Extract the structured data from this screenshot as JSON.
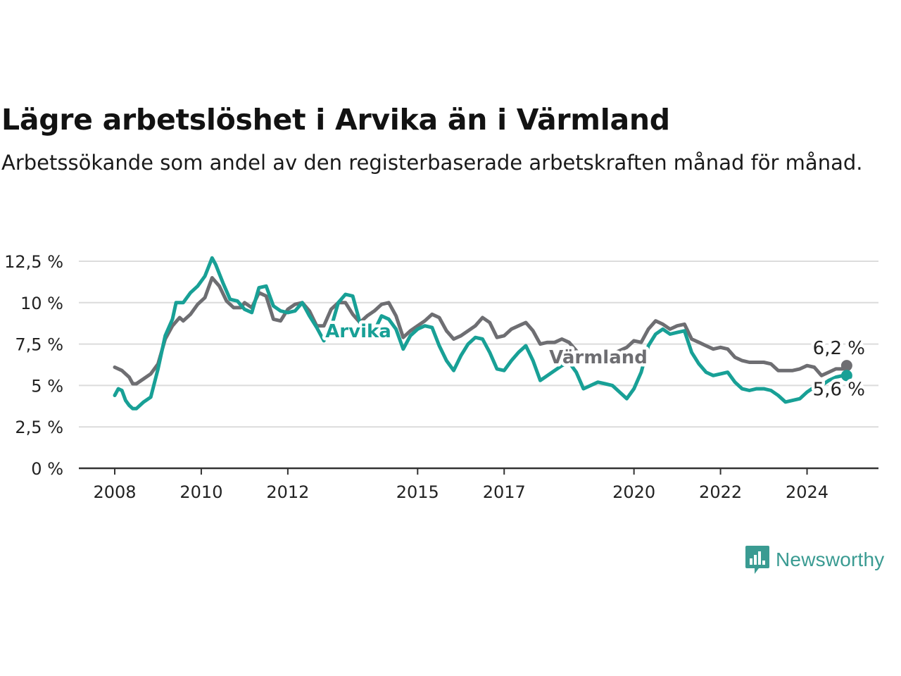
{
  "header": {
    "title": "Lägre arbetslöshet i Arvika än i Värmland",
    "subtitle": "Arbetssökande som andel av den registerbaserade arbetskraften månad för månad."
  },
  "brand": {
    "name": "Newsworthy",
    "icon": "newsworthy-logo-icon",
    "color": "#3a9b92"
  },
  "chart_data": {
    "type": "line",
    "title": "Lägre arbetslöshet i Arvika än i Värmland",
    "subtitle": "Arbetssökande som andel av den registerbaserade arbetskraften månad för månad.",
    "xlabel": "",
    "ylabel": "",
    "x_range": [
      "2008-01",
      "2024-12"
    ],
    "x_ticks": [
      {
        "label": "2008",
        "t": 2008.0
      },
      {
        "label": "2010",
        "t": 2010.0
      },
      {
        "label": "2012",
        "t": 2012.0
      },
      {
        "label": "2015",
        "t": 2015.0
      },
      {
        "label": "2017",
        "t": 2017.0
      },
      {
        "label": "2020",
        "t": 2020.0
      },
      {
        "label": "2022",
        "t": 2022.0
      },
      {
        "label": "2024",
        "t": 2024.0
      }
    ],
    "ylim": [
      0,
      12.5
    ],
    "y_ticks": [
      {
        "value": 0,
        "label": "0 %"
      },
      {
        "value": 2.5,
        "label": "2,5 %"
      },
      {
        "value": 5,
        "label": "5 %"
      },
      {
        "value": 7.5,
        "label": "7,5 %"
      },
      {
        "value": 10,
        "label": "10 %"
      },
      {
        "value": 12.5,
        "label": "12,5 %"
      }
    ],
    "grid": true,
    "legend": "none",
    "series": [
      {
        "name": "Värmland",
        "color": "#6e6e72",
        "end_label": "6,2 %",
        "points": [
          [
            "2008-01",
            6.1
          ],
          [
            "2008-03",
            5.9
          ],
          [
            "2008-05",
            5.5
          ],
          [
            "2008-06",
            5.1
          ],
          [
            "2008-07",
            5.1
          ],
          [
            "2008-09",
            5.4
          ],
          [
            "2008-11",
            5.7
          ],
          [
            "2009-01",
            6.3
          ],
          [
            "2009-03",
            7.8
          ],
          [
            "2009-05",
            8.6
          ],
          [
            "2009-07",
            9.1
          ],
          [
            "2009-08",
            8.9
          ],
          [
            "2009-10",
            9.3
          ],
          [
            "2009-12",
            9.9
          ],
          [
            "2010-02",
            10.3
          ],
          [
            "2010-04",
            11.5
          ],
          [
            "2010-06",
            11.0
          ],
          [
            "2010-08",
            10.1
          ],
          [
            "2010-10",
            9.7
          ],
          [
            "2010-12",
            9.7
          ],
          [
            "2011-01",
            10.0
          ],
          [
            "2011-03",
            9.7
          ],
          [
            "2011-05",
            10.6
          ],
          [
            "2011-07",
            10.4
          ],
          [
            "2011-09",
            9.0
          ],
          [
            "2011-11",
            8.9
          ],
          [
            "2012-01",
            9.6
          ],
          [
            "2012-03",
            9.9
          ],
          [
            "2012-05",
            10.0
          ],
          [
            "2012-07",
            9.5
          ],
          [
            "2012-09",
            8.6
          ],
          [
            "2012-11",
            8.6
          ],
          [
            "2013-01",
            9.6
          ],
          [
            "2013-03",
            10.0
          ],
          [
            "2013-05",
            10.0
          ],
          [
            "2013-07",
            9.3
          ],
          [
            "2013-09",
            8.8
          ],
          [
            "2013-11",
            9.2
          ],
          [
            "2014-01",
            9.5
          ],
          [
            "2014-03",
            9.9
          ],
          [
            "2014-05",
            10.0
          ],
          [
            "2014-07",
            9.2
          ],
          [
            "2014-09",
            7.9
          ],
          [
            "2014-11",
            8.3
          ],
          [
            "2015-01",
            8.6
          ],
          [
            "2015-03",
            8.9
          ],
          [
            "2015-05",
            9.3
          ],
          [
            "2015-07",
            9.1
          ],
          [
            "2015-09",
            8.3
          ],
          [
            "2015-11",
            7.8
          ],
          [
            "2016-01",
            8.0
          ],
          [
            "2016-03",
            8.3
          ],
          [
            "2016-05",
            8.6
          ],
          [
            "2016-07",
            9.1
          ],
          [
            "2016-09",
            8.8
          ],
          [
            "2016-11",
            7.9
          ],
          [
            "2017-01",
            8.0
          ],
          [
            "2017-03",
            8.4
          ],
          [
            "2017-05",
            8.6
          ],
          [
            "2017-07",
            8.8
          ],
          [
            "2017-09",
            8.3
          ],
          [
            "2017-11",
            7.5
          ],
          [
            "2018-01",
            7.6
          ],
          [
            "2018-03",
            7.6
          ],
          [
            "2018-05",
            7.8
          ],
          [
            "2018-07",
            7.6
          ],
          [
            "2018-09",
            7.1
          ],
          [
            "2018-11",
            6.6
          ],
          [
            "2019-01",
            6.4
          ],
          [
            "2019-03",
            6.3
          ],
          [
            "2019-05",
            6.5
          ],
          [
            "2019-07",
            6.9
          ],
          [
            "2019-09",
            7.1
          ],
          [
            "2019-11",
            7.3
          ],
          [
            "2020-01",
            7.7
          ],
          [
            "2020-03",
            7.6
          ],
          [
            "2020-05",
            8.4
          ],
          [
            "2020-07",
            8.9
          ],
          [
            "2020-09",
            8.7
          ],
          [
            "2020-11",
            8.4
          ],
          [
            "2021-01",
            8.6
          ],
          [
            "2021-03",
            8.7
          ],
          [
            "2021-05",
            7.8
          ],
          [
            "2021-07",
            7.6
          ],
          [
            "2021-09",
            7.4
          ],
          [
            "2021-11",
            7.2
          ],
          [
            "2022-01",
            7.3
          ],
          [
            "2022-03",
            7.2
          ],
          [
            "2022-05",
            6.7
          ],
          [
            "2022-07",
            6.5
          ],
          [
            "2022-09",
            6.4
          ],
          [
            "2022-11",
            6.4
          ],
          [
            "2023-01",
            6.4
          ],
          [
            "2023-03",
            6.3
          ],
          [
            "2023-05",
            5.9
          ],
          [
            "2023-07",
            5.9
          ],
          [
            "2023-09",
            5.9
          ],
          [
            "2023-11",
            6.0
          ],
          [
            "2024-01",
            6.2
          ],
          [
            "2024-03",
            6.1
          ],
          [
            "2024-05",
            5.6
          ],
          [
            "2024-07",
            5.8
          ],
          [
            "2024-09",
            6.0
          ],
          [
            "2024-11",
            6.0
          ],
          [
            "2024-12",
            6.2
          ]
        ]
      },
      {
        "name": "Arvika",
        "color": "#18a096",
        "end_label": "5,6 %",
        "points": [
          [
            "2008-01",
            4.4
          ],
          [
            "2008-02",
            4.8
          ],
          [
            "2008-03",
            4.7
          ],
          [
            "2008-04",
            4.1
          ],
          [
            "2008-05",
            3.8
          ],
          [
            "2008-06",
            3.6
          ],
          [
            "2008-07",
            3.6
          ],
          [
            "2008-09",
            4.0
          ],
          [
            "2008-11",
            4.3
          ],
          [
            "2009-01",
            6.0
          ],
          [
            "2009-03",
            8.0
          ],
          [
            "2009-05",
            9.0
          ],
          [
            "2009-06",
            10.0
          ],
          [
            "2009-08",
            10.0
          ],
          [
            "2009-10",
            10.6
          ],
          [
            "2009-12",
            11.0
          ],
          [
            "2010-02",
            11.6
          ],
          [
            "2010-04",
            12.7
          ],
          [
            "2010-05",
            12.3
          ],
          [
            "2010-07",
            11.2
          ],
          [
            "2010-09",
            10.2
          ],
          [
            "2010-11",
            10.1
          ],
          [
            "2011-01",
            9.6
          ],
          [
            "2011-03",
            9.4
          ],
          [
            "2011-05",
            10.9
          ],
          [
            "2011-07",
            11.0
          ],
          [
            "2011-09",
            9.8
          ],
          [
            "2011-11",
            9.5
          ],
          [
            "2012-01",
            9.4
          ],
          [
            "2012-03",
            9.5
          ],
          [
            "2012-05",
            10.0
          ],
          [
            "2012-07",
            9.2
          ],
          [
            "2012-09",
            8.5
          ],
          [
            "2012-11",
            7.7
          ],
          [
            "2013-01",
            8.5
          ],
          [
            "2013-03",
            10.0
          ],
          [
            "2013-05",
            10.5
          ],
          [
            "2013-07",
            10.4
          ],
          [
            "2013-09",
            8.8
          ],
          [
            "2013-11",
            8.1
          ],
          [
            "2014-01",
            8.3
          ],
          [
            "2014-03",
            9.2
          ],
          [
            "2014-05",
            9.0
          ],
          [
            "2014-07",
            8.4
          ],
          [
            "2014-09",
            7.2
          ],
          [
            "2014-11",
            8.0
          ],
          [
            "2015-01",
            8.4
          ],
          [
            "2015-03",
            8.6
          ],
          [
            "2015-05",
            8.5
          ],
          [
            "2015-07",
            7.4
          ],
          [
            "2015-09",
            6.5
          ],
          [
            "2015-11",
            5.9
          ],
          [
            "2016-01",
            6.8
          ],
          [
            "2016-03",
            7.5
          ],
          [
            "2016-05",
            7.9
          ],
          [
            "2016-07",
            7.8
          ],
          [
            "2016-09",
            7.0
          ],
          [
            "2016-11",
            6.0
          ],
          [
            "2017-01",
            5.9
          ],
          [
            "2017-03",
            6.5
          ],
          [
            "2017-05",
            7.0
          ],
          [
            "2017-07",
            7.4
          ],
          [
            "2017-09",
            6.5
          ],
          [
            "2017-11",
            5.3
          ],
          [
            "2018-01",
            5.6
          ],
          [
            "2018-03",
            5.9
          ],
          [
            "2018-05",
            6.2
          ],
          [
            "2018-07",
            6.4
          ],
          [
            "2018-09",
            5.8
          ],
          [
            "2018-11",
            4.8
          ],
          [
            "2019-01",
            5.0
          ],
          [
            "2019-03",
            5.2
          ],
          [
            "2019-05",
            5.1
          ],
          [
            "2019-07",
            5.0
          ],
          [
            "2019-09",
            4.6
          ],
          [
            "2019-11",
            4.2
          ],
          [
            "2020-01",
            4.8
          ],
          [
            "2020-03",
            5.8
          ],
          [
            "2020-05",
            7.4
          ],
          [
            "2020-07",
            8.1
          ],
          [
            "2020-09",
            8.4
          ],
          [
            "2020-11",
            8.1
          ],
          [
            "2021-01",
            8.2
          ],
          [
            "2021-03",
            8.3
          ],
          [
            "2021-05",
            7.0
          ],
          [
            "2021-07",
            6.3
          ],
          [
            "2021-09",
            5.8
          ],
          [
            "2021-11",
            5.6
          ],
          [
            "2022-01",
            5.7
          ],
          [
            "2022-03",
            5.8
          ],
          [
            "2022-05",
            5.2
          ],
          [
            "2022-07",
            4.8
          ],
          [
            "2022-09",
            4.7
          ],
          [
            "2022-11",
            4.8
          ],
          [
            "2023-01",
            4.8
          ],
          [
            "2023-03",
            4.7
          ],
          [
            "2023-05",
            4.4
          ],
          [
            "2023-07",
            4.0
          ],
          [
            "2023-09",
            4.1
          ],
          [
            "2023-11",
            4.2
          ],
          [
            "2024-01",
            4.6
          ],
          [
            "2024-03",
            4.9
          ],
          [
            "2024-05",
            5.0
          ],
          [
            "2024-07",
            5.3
          ],
          [
            "2024-09",
            5.5
          ],
          [
            "2024-11",
            5.6
          ],
          [
            "2024-12",
            5.6
          ]
        ]
      }
    ]
  }
}
